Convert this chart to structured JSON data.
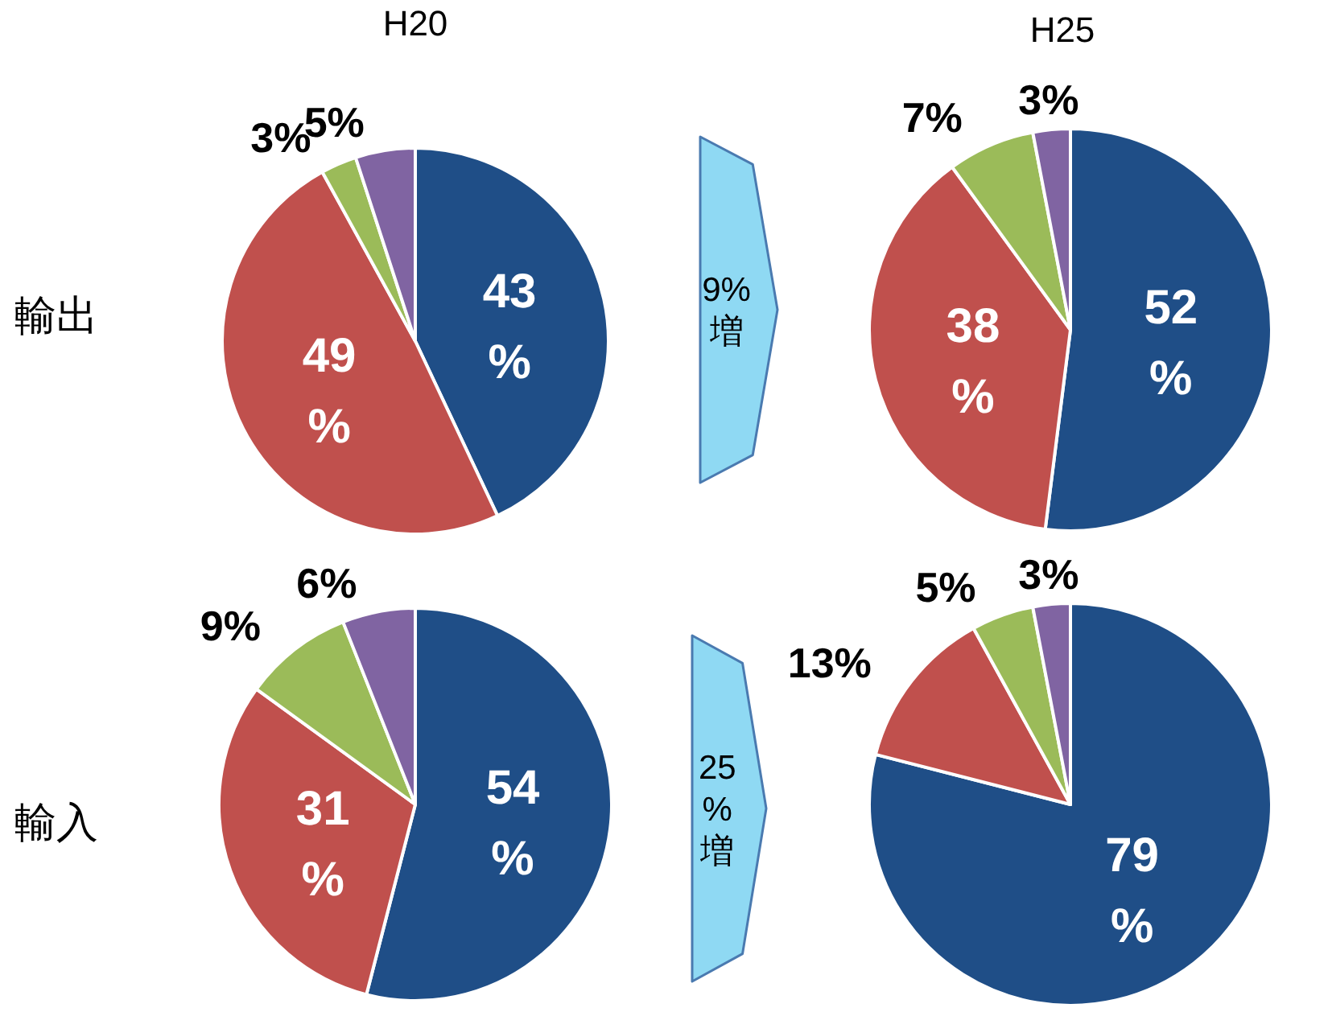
{
  "chart_data": [
    {
      "type": "pie",
      "title": "H20",
      "ylabel": "輸出",
      "categories": [
        null,
        null,
        null,
        null
      ],
      "values": [
        43,
        49,
        3,
        5
      ],
      "value_labels": [
        "43%",
        "49%",
        "3%",
        "5%"
      ],
      "colors": [
        "#1f4e87",
        "#c0504d",
        "#9bbb59",
        "#8064a2"
      ]
    },
    {
      "type": "pie",
      "title": "H25",
      "categories": [
        null,
        null,
        null,
        null
      ],
      "values": [
        52,
        38,
        7,
        3
      ],
      "value_labels": [
        "52%",
        "38%",
        "7%",
        "3%"
      ],
      "colors": [
        "#1f4e87",
        "#c0504d",
        "#9bbb59",
        "#8064a2"
      ],
      "annotations": [
        "9%増"
      ]
    },
    {
      "type": "pie",
      "ylabel": "輸入",
      "categories": [
        null,
        null,
        null,
        null
      ],
      "values": [
        54,
        31,
        9,
        6
      ],
      "value_labels": [
        "54%",
        "31%",
        "9%",
        "6%"
      ],
      "colors": [
        "#1f4e87",
        "#c0504d",
        "#9bbb59",
        "#8064a2"
      ]
    },
    {
      "type": "pie",
      "categories": [
        null,
        null,
        null,
        null
      ],
      "values": [
        79,
        13,
        5,
        3
      ],
      "value_labels": [
        "79%",
        "13%",
        "5%",
        "3%"
      ],
      "colors": [
        "#1f4e87",
        "#c0504d",
        "#9bbb59",
        "#8064a2"
      ],
      "annotations": [
        "25%増"
      ]
    }
  ]
}
